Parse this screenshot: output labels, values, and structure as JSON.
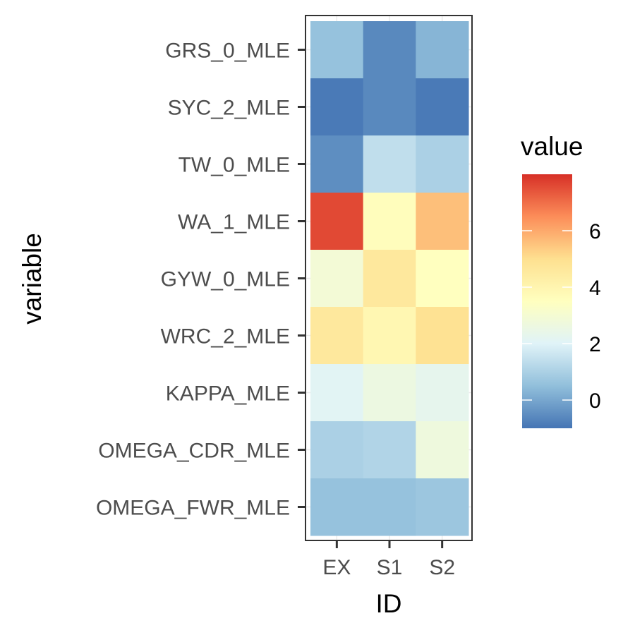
{
  "chart_data": {
    "type": "heatmap",
    "xlabel": "ID",
    "ylabel": "variable",
    "x_categories": [
      "EX",
      "S1",
      "S2"
    ],
    "y_categories": [
      "GRS_0_MLE",
      "SYC_2_MLE",
      "TW_0_MLE",
      "WA_1_MLE",
      "GYW_0_MLE",
      "WRC_2_MLE",
      "KAPPA_MLE",
      "OMEGA_CDR_MLE",
      "OMEGA_FWR_MLE"
    ],
    "values": [
      [
        0.6,
        -0.6,
        0.3
      ],
      [
        -0.9,
        -0.6,
        -0.9
      ],
      [
        -0.5,
        1.4,
        1.0
      ],
      [
        7.6,
        3.6,
        5.6
      ],
      [
        2.9,
        4.6,
        3.5
      ],
      [
        4.6,
        3.9,
        4.9
      ],
      [
        2.1,
        2.6,
        2.3
      ],
      [
        1.0,
        1.1,
        2.7
      ],
      [
        0.6,
        0.6,
        0.7
      ]
    ],
    "colorbar": {
      "title": "value",
      "range": [
        -1.0,
        8.0
      ],
      "ticks": [
        0,
        2,
        4,
        6
      ],
      "tick_labels": [
        "0",
        "2",
        "4",
        "6"
      ],
      "colors": [
        "#4575b4",
        "#91bfdb",
        "#e0f3f8",
        "#ffffbf",
        "#fee090",
        "#fc8d59",
        "#d73027"
      ]
    },
    "grid": true,
    "legend_position": "right"
  }
}
